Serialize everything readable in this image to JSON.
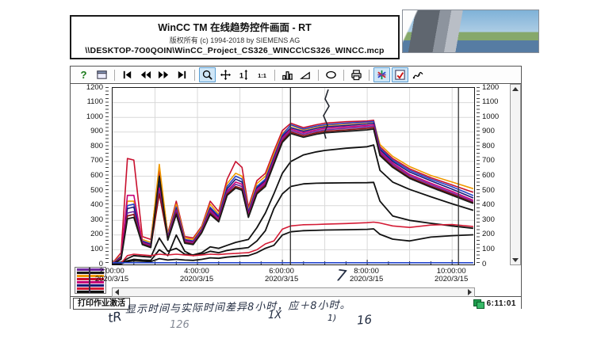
{
  "title_box": {
    "line1": "WinCC TM 在线趋势控件画面 - RT",
    "line2": "版权所有 (c) 1994-2018 by SIEMENS AG",
    "line3": "\\\\DESKTOP-7O0QOIN\\WinCC_Project_CS326_WINCC\\CS326_WINCC.mcp"
  },
  "toolbar": {
    "buttons": [
      {
        "name": "help",
        "icon": "help-icon",
        "selected": false
      },
      {
        "name": "properties-dialog",
        "icon": "window-icon",
        "selected": false
      },
      {
        "name": "sep"
      },
      {
        "name": "first-record",
        "icon": "skip-start-icon",
        "selected": false
      },
      {
        "name": "previous-record",
        "icon": "rewind-icon",
        "selected": false
      },
      {
        "name": "next-record",
        "icon": "fast-forward-icon",
        "selected": false
      },
      {
        "name": "last-record",
        "icon": "skip-end-icon",
        "selected": false
      },
      {
        "name": "sep"
      },
      {
        "name": "zoom-area",
        "icon": "magnifier-icon",
        "selected": true
      },
      {
        "name": "move-trend-area",
        "icon": "move-cross-icon",
        "selected": false
      },
      {
        "name": "zoom-y-axis",
        "icon": "y-zoom-icon",
        "selected": false
      },
      {
        "name": "original-view",
        "icon": "one-to-one-icon",
        "selected": false
      },
      {
        "name": "sep"
      },
      {
        "name": "statistics",
        "icon": "bar-chart-icon",
        "selected": false
      },
      {
        "name": "statistics-area",
        "icon": "ramp-icon",
        "selected": false
      },
      {
        "name": "sep"
      },
      {
        "name": "stop-update",
        "icon": "ellipse-icon",
        "selected": false
      },
      {
        "name": "sep"
      },
      {
        "name": "print",
        "icon": "printer-icon",
        "selected": false
      },
      {
        "name": "sep"
      },
      {
        "name": "pen-colors",
        "icon": "color-star-icon",
        "selected": true
      },
      {
        "name": "select-trend",
        "icon": "trend-check-icon",
        "selected": true
      },
      {
        "name": "connect-dots",
        "icon": "curve-icon",
        "selected": false
      }
    ]
  },
  "chart": {
    "y_ticks": [
      "1200",
      "1100",
      "1000",
      "900",
      "800",
      "700",
      "600",
      "500",
      "400",
      "300",
      "200",
      "100",
      "0"
    ],
    "x_ticks": [
      {
        "hour": 2,
        "time": "2:00:00",
        "date": "2020/3/15"
      },
      {
        "hour": 4,
        "time": "4:00:00",
        "date": "2020/3/15"
      },
      {
        "hour": 6,
        "time": "6:00:00",
        "date": "2020/3/15"
      },
      {
        "hour": 8,
        "time": "8:00:00",
        "date": "2020/3/15"
      },
      {
        "hour": 10,
        "time": "10:00:00",
        "date": "2020/3/15"
      }
    ],
    "legend_chip_colors": [
      "#6e28a0",
      "#1a1a1a",
      "#f09a00",
      "#c8102e",
      "#c80078",
      "#1c1c78",
      "#d41b35",
      "#111111"
    ]
  },
  "chart_data": {
    "type": "line",
    "title": "WinCC TM 在线趋势控件画面 - RT",
    "xlabel": "2020/3/15 time",
    "ylabel": "",
    "xlim_hours": [
      2,
      10.52
    ],
    "ylim": [
      0,
      1200
    ],
    "grid": true,
    "legend_position": "bottom-left-chip",
    "x_hours": [
      2.0,
      2.2,
      2.35,
      2.5,
      2.7,
      2.9,
      3.1,
      3.3,
      3.5,
      3.7,
      3.9,
      4.1,
      4.3,
      4.5,
      4.7,
      4.9,
      5.05,
      5.2,
      5.4,
      5.6,
      5.8,
      6.0,
      6.2,
      6.5,
      6.8,
      7.0,
      7.5,
      8.0,
      8.15,
      8.3,
      8.6,
      9.0,
      9.5,
      10.0,
      10.5
    ],
    "cursor_lines_hours": [
      6.19,
      10.15
    ],
    "series": [
      {
        "name": "pen-crimson",
        "color": "#c8102e",
        "values": [
          10,
          80,
          720,
          710,
          190,
          170,
          640,
          210,
          430,
          190,
          180,
          260,
          430,
          360,
          580,
          700,
          660,
          390,
          570,
          620,
          770,
          910,
          960,
          930,
          950,
          960,
          970,
          975,
          980,
          800,
          720,
          650,
          590,
          540,
          490
        ]
      },
      {
        "name": "pen-orange",
        "color": "#f09a00",
        "values": [
          8,
          60,
          430,
          430,
          170,
          150,
          680,
          200,
          410,
          180,
          170,
          250,
          410,
          340,
          550,
          620,
          600,
          370,
          550,
          600,
          750,
          890,
          945,
          915,
          935,
          945,
          955,
          965,
          970,
          815,
          735,
          665,
          605,
          560,
          515
        ]
      },
      {
        "name": "pen-blue",
        "color": "#2a46c8",
        "values": [
          6,
          55,
          400,
          410,
          160,
          140,
          560,
          190,
          390,
          170,
          160,
          240,
          390,
          330,
          530,
          600,
          580,
          360,
          530,
          580,
          730,
          880,
          950,
          920,
          940,
          950,
          960,
          968,
          972,
          790,
          710,
          640,
          580,
          528,
          468
        ]
      },
      {
        "name": "pen-navy",
        "color": "#1c1c78",
        "values": [
          5,
          50,
          380,
          390,
          155,
          135,
          540,
          185,
          380,
          165,
          155,
          235,
          380,
          320,
          515,
          580,
          560,
          350,
          520,
          570,
          720,
          870,
          930,
          905,
          925,
          935,
          945,
          955,
          960,
          780,
          700,
          628,
          568,
          512,
          452
        ]
      },
      {
        "name": "pen-magenta",
        "color": "#c80078",
        "values": [
          5,
          45,
          470,
          470,
          150,
          130,
          520,
          180,
          370,
          160,
          150,
          230,
          370,
          310,
          500,
          560,
          545,
          340,
          510,
          560,
          710,
          860,
          920,
          895,
          915,
          925,
          935,
          945,
          950,
          768,
          688,
          612,
          552,
          496,
          436
        ]
      },
      {
        "name": "pen-purple",
        "color": "#6e28a0",
        "values": [
          4,
          40,
          350,
          360,
          145,
          125,
          500,
          175,
          360,
          155,
          145,
          225,
          360,
          300,
          490,
          545,
          530,
          330,
          500,
          550,
          700,
          850,
          910,
          885,
          905,
          915,
          925,
          935,
          940,
          758,
          678,
          602,
          542,
          486,
          426
        ]
      },
      {
        "name": "pen-darkred",
        "color": "#8c1010",
        "values": [
          4,
          38,
          330,
          340,
          140,
          120,
          480,
          170,
          350,
          150,
          140,
          220,
          350,
          295,
          480,
          530,
          515,
          325,
          490,
          540,
          690,
          840,
          900,
          875,
          895,
          905,
          915,
          925,
          930,
          748,
          668,
          592,
          532,
          478,
          420
        ]
      },
      {
        "name": "pen-black-top",
        "color": "#1a1a1a",
        "values": [
          3,
          35,
          310,
          320,
          135,
          115,
          600,
          165,
          340,
          145,
          135,
          215,
          340,
          290,
          470,
          520,
          505,
          320,
          480,
          530,
          680,
          830,
          890,
          865,
          885,
          895,
          905,
          915,
          920,
          740,
          660,
          585,
          525,
          470,
          415
        ]
      },
      {
        "name": "pen-black-mid-high",
        "color": "#111111",
        "values": [
          10,
          15,
          40,
          60,
          55,
          50,
          180,
          90,
          110,
          70,
          65,
          80,
          120,
          110,
          130,
          150,
          160,
          170,
          250,
          350,
          480,
          620,
          700,
          745,
          765,
          775,
          790,
          800,
          812,
          640,
          560,
          510,
          460,
          412,
          368
        ]
      },
      {
        "name": "pen-black-mid",
        "color": "#111111",
        "values": [
          5,
          10,
          25,
          35,
          30,
          28,
          100,
          60,
          200,
          90,
          60,
          70,
          90,
          80,
          95,
          105,
          110,
          115,
          160,
          230,
          380,
          480,
          530,
          548,
          552,
          553,
          555,
          556,
          558,
          430,
          330,
          300,
          280,
          262,
          246
        ]
      },
      {
        "name": "pen-red-low",
        "color": "#d41b35",
        "values": [
          3,
          8,
          60,
          70,
          65,
          60,
          70,
          65,
          70,
          65,
          60,
          65,
          70,
          68,
          72,
          75,
          78,
          80,
          100,
          140,
          160,
          240,
          262,
          270,
          272,
          274,
          278,
          284,
          288,
          282,
          262,
          252,
          268,
          272,
          258
        ]
      },
      {
        "name": "pen-black-low",
        "color": "#111111",
        "values": [
          2,
          5,
          20,
          25,
          22,
          20,
          40,
          30,
          35,
          30,
          28,
          35,
          45,
          42,
          50,
          55,
          58,
          60,
          80,
          110,
          130,
          200,
          222,
          230,
          232,
          234,
          236,
          239,
          242,
          205,
          172,
          160,
          186,
          196,
          202
        ]
      },
      {
        "name": "pen-blue-flat",
        "color": "#2244cc",
        "values": [
          12,
          12,
          12,
          12,
          12,
          12,
          12,
          12,
          12,
          12,
          12,
          12,
          12,
          12,
          12,
          12,
          12,
          12,
          12,
          12,
          12,
          12,
          12,
          12,
          12,
          12,
          12,
          12,
          12,
          12,
          12,
          12,
          12,
          12,
          12
        ]
      }
    ]
  },
  "statusbar": {
    "print_status": "打印作业激活",
    "clock": "6:11:01"
  },
  "handwriting": {
    "note": "显示时间与实际时间差异8小时，应＋8小时。",
    "mark_7": "7",
    "mark_tr": "tR",
    "mark_1x": "1X",
    "mark_paren": "1)",
    "mark_126": "126",
    "mark_16": "16"
  }
}
